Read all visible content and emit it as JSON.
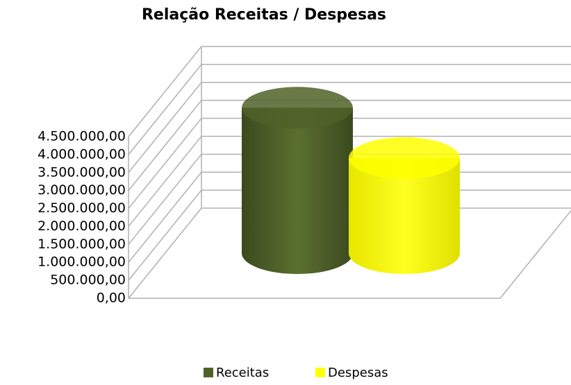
{
  "chart_data": {
    "type": "bar3d_cylinder",
    "title": "Relação Receitas / Despesas",
    "categories": [
      "Receitas",
      "Despesas"
    ],
    "values": [
      4050000,
      2650000
    ],
    "colors": [
      "#4f6228",
      "#ffff00"
    ],
    "ylim": [
      0,
      4500000
    ],
    "yticks": [
      {
        "value": 0,
        "label": "0,00"
      },
      {
        "value": 500000,
        "label": "500.000,00"
      },
      {
        "value": 1000000,
        "label": "1.000.000,00"
      },
      {
        "value": 1500000,
        "label": "1.500.000,00"
      },
      {
        "value": 2000000,
        "label": "2.000.000,00"
      },
      {
        "value": 2500000,
        "label": "2.500.000,00"
      },
      {
        "value": 3000000,
        "label": "3.000.000,00"
      },
      {
        "value": 3500000,
        "label": "3.500.000,00"
      },
      {
        "value": 4000000,
        "label": "4.000.000,00"
      },
      {
        "value": 4500000,
        "label": "4.500.000,00"
      }
    ],
    "grid": true,
    "legend": "bottom"
  }
}
